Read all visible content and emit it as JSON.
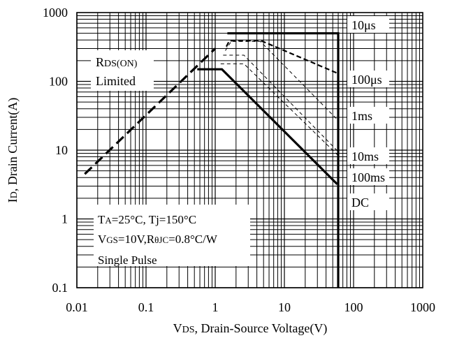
{
  "chart_data": {
    "type": "line",
    "title": "",
    "xlabel": {
      "main": "V",
      "sub": "DS",
      "rest": ", Drain-Source Voltage(V)"
    },
    "ylabel": {
      "main": "I",
      "sub": "D",
      "rest": ", Drain Current(A)"
    },
    "xscale": "log",
    "yscale": "log",
    "xlim": [
      0.01,
      1000
    ],
    "ylim": [
      0.1,
      1000
    ],
    "grid": true,
    "x_ticks": [
      {
        "value": 0.01,
        "label": "0.01"
      },
      {
        "value": 0.1,
        "label": "0.1"
      },
      {
        "value": 1,
        "label": "1"
      },
      {
        "value": 10,
        "label": "10"
      },
      {
        "value": 100,
        "label": "100"
      },
      {
        "value": 1000,
        "label": "1000"
      }
    ],
    "y_ticks": [
      {
        "value": 0.1,
        "label": "0.1"
      },
      {
        "value": 1,
        "label": "1"
      },
      {
        "value": 10,
        "label": "10"
      },
      {
        "value": 100,
        "label": "100"
      },
      {
        "value": 1000,
        "label": "1000"
      }
    ],
    "series": [
      {
        "label": "RDS(ON) Limited",
        "style": "thick-dashed",
        "points": [
          [
            0.013,
            4.5
          ],
          [
            1.0,
            300
          ]
        ]
      },
      {
        "label": "DC",
        "style": "solid-thick",
        "points": [
          [
            0.55,
            150
          ],
          [
            1.25,
            150
          ],
          [
            58,
            3.2
          ]
        ]
      },
      {
        "label": "100ms",
        "style": "dashed-thin",
        "points": [
          [
            1.2,
            180
          ],
          [
            2.6,
            180
          ],
          [
            59,
            8.5
          ]
        ]
      },
      {
        "label": "10ms",
        "style": "dashed-thin",
        "points": [
          [
            1.3,
            240
          ],
          [
            2.6,
            240
          ],
          [
            60,
            9.5
          ]
        ]
      },
      {
        "label": "1ms",
        "style": "dashed-thin",
        "points": [
          [
            1.4,
            280
          ],
          [
            1.7,
            380
          ],
          [
            4.5,
            380
          ],
          [
            60,
            27
          ]
        ]
      },
      {
        "label": "100μs",
        "style": "dashed-medium",
        "points": [
          [
            1.45,
            320
          ],
          [
            1.6,
            390
          ],
          [
            4.6,
            390
          ],
          [
            60,
            130
          ]
        ]
      },
      {
        "label": "10μs",
        "style": "solid-thick",
        "points": [
          [
            1.5,
            500
          ],
          [
            60,
            500
          ],
          [
            60,
            0.1
          ]
        ]
      }
    ],
    "curve_labels": [
      {
        "text": "10μs",
        "x": 10
      },
      {
        "text": "100μs",
        "x": 10
      },
      {
        "text": "1ms",
        "x": 10
      },
      {
        "text": "10ms",
        "x": 10
      },
      {
        "text": "100ms",
        "x": 10
      },
      {
        "text": "DC",
        "x": 10
      }
    ],
    "rds_label": {
      "main": "R",
      "sub": "DS(ON)",
      "line2": "Limited"
    },
    "conditions": [
      {
        "parts": [
          {
            "t": "T"
          },
          {
            "t": "A",
            "sub": true
          },
          {
            "t": "=25°C, Tj=150°C"
          }
        ]
      },
      {
        "parts": [
          {
            "t": "V"
          },
          {
            "t": "GS",
            "sub": true
          },
          {
            "t": "=10V,R"
          },
          {
            "t": "θJC",
            "sub": true
          },
          {
            "t": "=0.8°C/W"
          }
        ]
      },
      {
        "parts": [
          {
            "t": "Single Pulse"
          }
        ]
      }
    ]
  }
}
